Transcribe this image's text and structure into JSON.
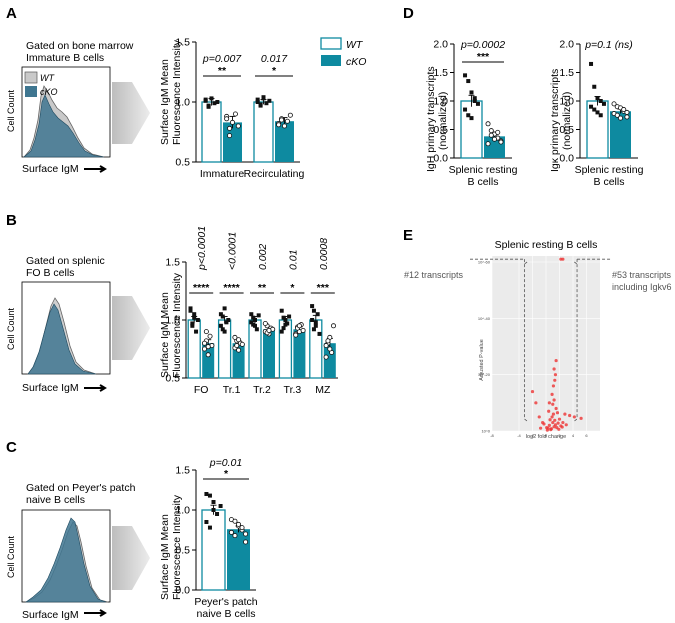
{
  "legend": {
    "wt": "WT",
    "cko": "cKO"
  },
  "colors": {
    "wt_fill": "#ffffff",
    "wt_stroke": "#0e8aa0",
    "cko": "#0e8aa0",
    "hist_wt": "#b5b5b5",
    "hist_cko": "#3f7690",
    "sig": "#000000",
    "volcano_bg": "#ebebeb",
    "volcano_pt": "#ee3333"
  },
  "panels": {
    "A": {
      "label": "A",
      "gate_line1": "Gated on bone marrow",
      "gate_line2": "Immature B cells",
      "hist_ylabel": "Cell Count",
      "hist_xlabel": "Surface IgM",
      "hist_legend_wt": "WT",
      "hist_legend_cko": "cKO"
    },
    "B": {
      "label": "B",
      "gate_line1": "Gated on splenic",
      "gate_line2": "FO B cells",
      "hist_ylabel": "Cell Count",
      "hist_xlabel": "Surface IgM"
    },
    "C": {
      "label": "C",
      "gate_line1": "Gated on Peyer's patch",
      "gate_line2": "naive B cells",
      "hist_ylabel": "Cell Count",
      "hist_xlabel": "Surface IgM"
    },
    "D": {
      "label": "D"
    },
    "E": {
      "label": "E"
    }
  },
  "chart_data": [
    {
      "id": "A",
      "type": "bar",
      "ylabel_line1": "Surface IgM Mean",
      "ylabel_line2": "Fluorescence Intensity",
      "ylim": [
        0.5,
        1.5
      ],
      "yticks": [
        0.5,
        1.0,
        1.5
      ],
      "ytick_labels": [
        "0.5",
        "1.0",
        "1.5"
      ],
      "categories": [
        "Immature",
        "Recirculating"
      ],
      "series": [
        {
          "name": "WT",
          "values": [
            1.0,
            1.0
          ]
        },
        {
          "name": "cKO",
          "values": [
            0.83,
            0.84
          ]
        }
      ],
      "errors": {
        "WT": [
          0.03,
          0.02
        ],
        "cKO": [
          0.05,
          0.03
        ]
      },
      "points": {
        "WT": [
          [
            1.01,
            0.96,
            1.03,
            0.99,
            1.0,
            1.02,
            0.97
          ],
          [
            1.02,
            0.98,
            1.03,
            0.99,
            1.01,
            1.0,
            0.97,
            1.04
          ]
        ],
        "cKO": [
          [
            0.88,
            0.72,
            0.83,
            0.9,
            0.8,
            0.86,
            0.78
          ],
          [
            0.82,
            0.86,
            0.8,
            0.84,
            0.89,
            0.81,
            0.85
          ]
        ]
      },
      "annotations": [
        {
          "p": "p=0.007",
          "stars": "**",
          "italic": true
        },
        {
          "p": "0.017",
          "stars": "*",
          "italic": true
        }
      ]
    },
    {
      "id": "B",
      "type": "bar",
      "ylabel_line1": "Surface IgM Mean",
      "ylabel_line2": "Fluorescence Intensity",
      "ylim": [
        0.5,
        1.5
      ],
      "yticks": [
        0.5,
        1.0,
        1.5
      ],
      "ytick_labels": [
        "0.5",
        "1.0",
        "1.5"
      ],
      "categories": [
        "FO",
        "Tr.1",
        "Tr.2",
        "Tr.3",
        "MZ"
      ],
      "series": [
        {
          "name": "WT",
          "values": [
            1.0,
            1.0,
            1.0,
            1.0,
            1.0
          ]
        },
        {
          "name": "cKO",
          "values": [
            0.8,
            0.8,
            0.92,
            0.92,
            0.8
          ]
        }
      ],
      "errors": {
        "WT": [
          0.03,
          0.03,
          0.03,
          0.03,
          0.04
        ],
        "cKO": [
          0.03,
          0.02,
          0.02,
          0.02,
          0.04
        ]
      },
      "points": {
        "WT": [
          [
            1.1,
            0.95,
            1.05,
            0.9,
            1.0,
            1.08,
            0.97,
            1.02
          ],
          [
            1.05,
            0.92,
            1.1,
            0.98,
            1.0,
            0.95,
            1.03,
            0.9
          ],
          [
            1.05,
            0.96,
            1.0,
            0.92,
            1.04,
            0.98,
            1.02,
            0.95
          ],
          [
            1.08,
            0.93,
            1.0,
            0.97,
            1.03,
            0.9,
            1.02,
            0.96
          ],
          [
            1.12,
            0.92,
            0.98,
            1.05,
            0.88,
            1.0,
            1.08,
            0.95
          ]
        ],
        "cKO": [
          [
            0.75,
            0.82,
            0.7,
            0.86,
            0.78,
            0.8,
            0.9,
            0.77
          ],
          [
            0.76,
            0.82,
            0.74,
            0.8,
            0.79,
            0.85,
            0.78,
            0.83
          ],
          [
            0.9,
            0.95,
            0.88,
            0.93,
            0.92,
            0.97,
            0.89,
            0.91
          ],
          [
            0.88,
            0.94,
            0.9,
            0.96,
            0.91,
            0.87,
            0.93,
            0.95
          ],
          [
            0.68,
            0.8,
            0.85,
            0.72,
            0.95,
            0.78,
            0.82,
            0.75
          ]
        ]
      },
      "annotations": [
        {
          "p": "p<0.0001",
          "stars": "****"
        },
        {
          "p": "<0.0001",
          "stars": "****"
        },
        {
          "p": "0.002",
          "stars": "**"
        },
        {
          "p": "0.01",
          "stars": "*"
        },
        {
          "p": "0.0008",
          "stars": "***"
        }
      ]
    },
    {
      "id": "C",
      "type": "bar",
      "ylabel_line1": "Surface IgM Mean",
      "ylabel_line2": "Fluorescence Intensity",
      "ylim": [
        0.0,
        1.5
      ],
      "yticks": [
        0.0,
        0.5,
        1.0,
        1.5
      ],
      "ytick_labels": [
        "0.0",
        "0.5",
        "1.0",
        "1.5"
      ],
      "categories": [
        "Peyer's patch naive B cells"
      ],
      "category_line1": "Peyer's patch",
      "category_line2": "naive B cells",
      "series": [
        {
          "name": "WT",
          "values": [
            1.0
          ]
        },
        {
          "name": "cKO",
          "values": [
            0.76
          ]
        }
      ],
      "errors": {
        "WT": [
          0.06
        ],
        "cKO": [
          0.04
        ]
      },
      "points": {
        "WT": [
          [
            1.2,
            1.18,
            1.0,
            0.95,
            1.05,
            0.85,
            0.78,
            1.1
          ]
        ],
        "cKO": [
          [
            0.88,
            0.86,
            0.8,
            0.75,
            0.7,
            0.72,
            0.68,
            0.82,
            0.78,
            0.6
          ]
        ]
      },
      "annotations": [
        {
          "p": "p=0.01",
          "stars": "*"
        }
      ]
    },
    {
      "id": "D1",
      "type": "bar",
      "ylabel_line1": "IgH primary transcripts",
      "ylabel_line2": "(normalized)",
      "ylim": [
        0.0,
        2.0
      ],
      "yticks": [
        0.0,
        0.5,
        1.0,
        1.5,
        2.0
      ],
      "ytick_labels": [
        "0.0",
        "0.5",
        "1.0",
        "1.5",
        "2.0"
      ],
      "categories": [
        "Splenic resting B cells"
      ],
      "category_line1": "Splenic resting",
      "category_line2": "B cells",
      "series": [
        {
          "name": "WT",
          "values": [
            1.0
          ]
        },
        {
          "name": "cKO",
          "values": [
            0.38
          ]
        }
      ],
      "errors": {
        "WT": [
          0.1
        ],
        "cKO": [
          0.05
        ]
      },
      "points": {
        "WT": [
          [
            1.45,
            1.35,
            1.15,
            1.05,
            0.95,
            0.85,
            0.75,
            0.7,
            1.0
          ]
        ],
        "cKO": [
          [
            0.6,
            0.48,
            0.42,
            0.35,
            0.3,
            0.25,
            0.4,
            0.33,
            0.45,
            0.28
          ]
        ]
      },
      "annotations": [
        {
          "p": "p=0.0002",
          "stars": "***"
        }
      ]
    },
    {
      "id": "D2",
      "type": "bar",
      "ylabel_line1": "Igκ primary transcripts",
      "ylabel_line2": "(normalized)",
      "ylim": [
        0.0,
        2.0
      ],
      "yticks": [
        0.0,
        0.5,
        1.0,
        1.5,
        2.0
      ],
      "ytick_labels": [
        "0.0",
        "0.5",
        "1.0",
        "1.5",
        "2.0"
      ],
      "categories": [
        "Splenic resting B cells"
      ],
      "category_line1": "Splenic resting",
      "category_line2": "B cells",
      "series": [
        {
          "name": "WT",
          "values": [
            1.0
          ]
        },
        {
          "name": "cKO",
          "values": [
            0.82
          ]
        }
      ],
      "errors": {
        "WT": [
          0.08
        ],
        "cKO": [
          0.04
        ]
      },
      "points": {
        "WT": [
          [
            1.65,
            1.25,
            1.05,
            1.0,
            0.95,
            0.9,
            0.85,
            0.8,
            0.75
          ]
        ],
        "cKO": [
          [
            0.95,
            0.9,
            0.88,
            0.82,
            0.8,
            0.78,
            0.75,
            0.7,
            0.85,
            0.72
          ]
        ]
      },
      "annotations": [
        {
          "p": "p=0.1 (ns)",
          "stars": ""
        }
      ]
    },
    {
      "id": "E",
      "type": "scatter",
      "title": "Splenic resting B cells",
      "xlabel": "log2 fold change",
      "ylabel": "Adjusted P-value",
      "xlim": [
        -8,
        8
      ],
      "xticks": [
        -8,
        -4,
        -2,
        0,
        2,
        4,
        6
      ],
      "xtick_labels": [
        "-8",
        "-4",
        "-2",
        "0",
        "2",
        "4",
        "6"
      ],
      "ytick_labels": [
        "10^0",
        "10^-20",
        "10^-40",
        "10^-60"
      ],
      "ylim_neglog10": [
        0,
        60
      ],
      "left_annotation": "#12 transcripts",
      "right_annotation_line1": "#53 transcripts",
      "right_annotation_line2": "including Igkv6",
      "points": [
        [
          0.3,
          1
        ],
        [
          0.5,
          2
        ],
        [
          0.8,
          0.8
        ],
        [
          1.0,
          3
        ],
        [
          1.2,
          1.5
        ],
        [
          0.6,
          4
        ],
        [
          1.4,
          2.2
        ],
        [
          0.9,
          5
        ],
        [
          1.1,
          6
        ],
        [
          1.3,
          3.8
        ],
        [
          0.7,
          0.5
        ],
        [
          1.6,
          1.2
        ],
        [
          1.8,
          2.8
        ],
        [
          2.0,
          4.2
        ],
        [
          2.2,
          1.8
        ],
        [
          0.4,
          7
        ],
        [
          1.5,
          8
        ],
        [
          1.0,
          9.5
        ],
        [
          1.2,
          11
        ],
        [
          0.9,
          13
        ],
        [
          1.1,
          16
        ],
        [
          1.3,
          18
        ],
        [
          1.4,
          20
        ],
        [
          1.2,
          22
        ],
        [
          1.5,
          25
        ],
        [
          -0.5,
          3
        ],
        [
          -1.0,
          5
        ],
        [
          -1.5,
          10
        ],
        [
          -2.0,
          14
        ],
        [
          -0.8,
          1
        ],
        [
          -0.3,
          2.5
        ],
        [
          3.5,
          5.5
        ],
        [
          2.8,
          6
        ],
        [
          4.2,
          5
        ],
        [
          5.2,
          4.5
        ],
        [
          2.5,
          3
        ],
        [
          0.2,
          0.3
        ],
        [
          0.1,
          1.2
        ],
        [
          1.9,
          0.6
        ],
        [
          2.4,
          1.4
        ],
        [
          3.0,
          2.2
        ],
        [
          1.7,
          6.5
        ],
        [
          0.5,
          10
        ],
        [
          2.2,
          61
        ],
        [
          2.5,
          61
        ]
      ]
    }
  ]
}
